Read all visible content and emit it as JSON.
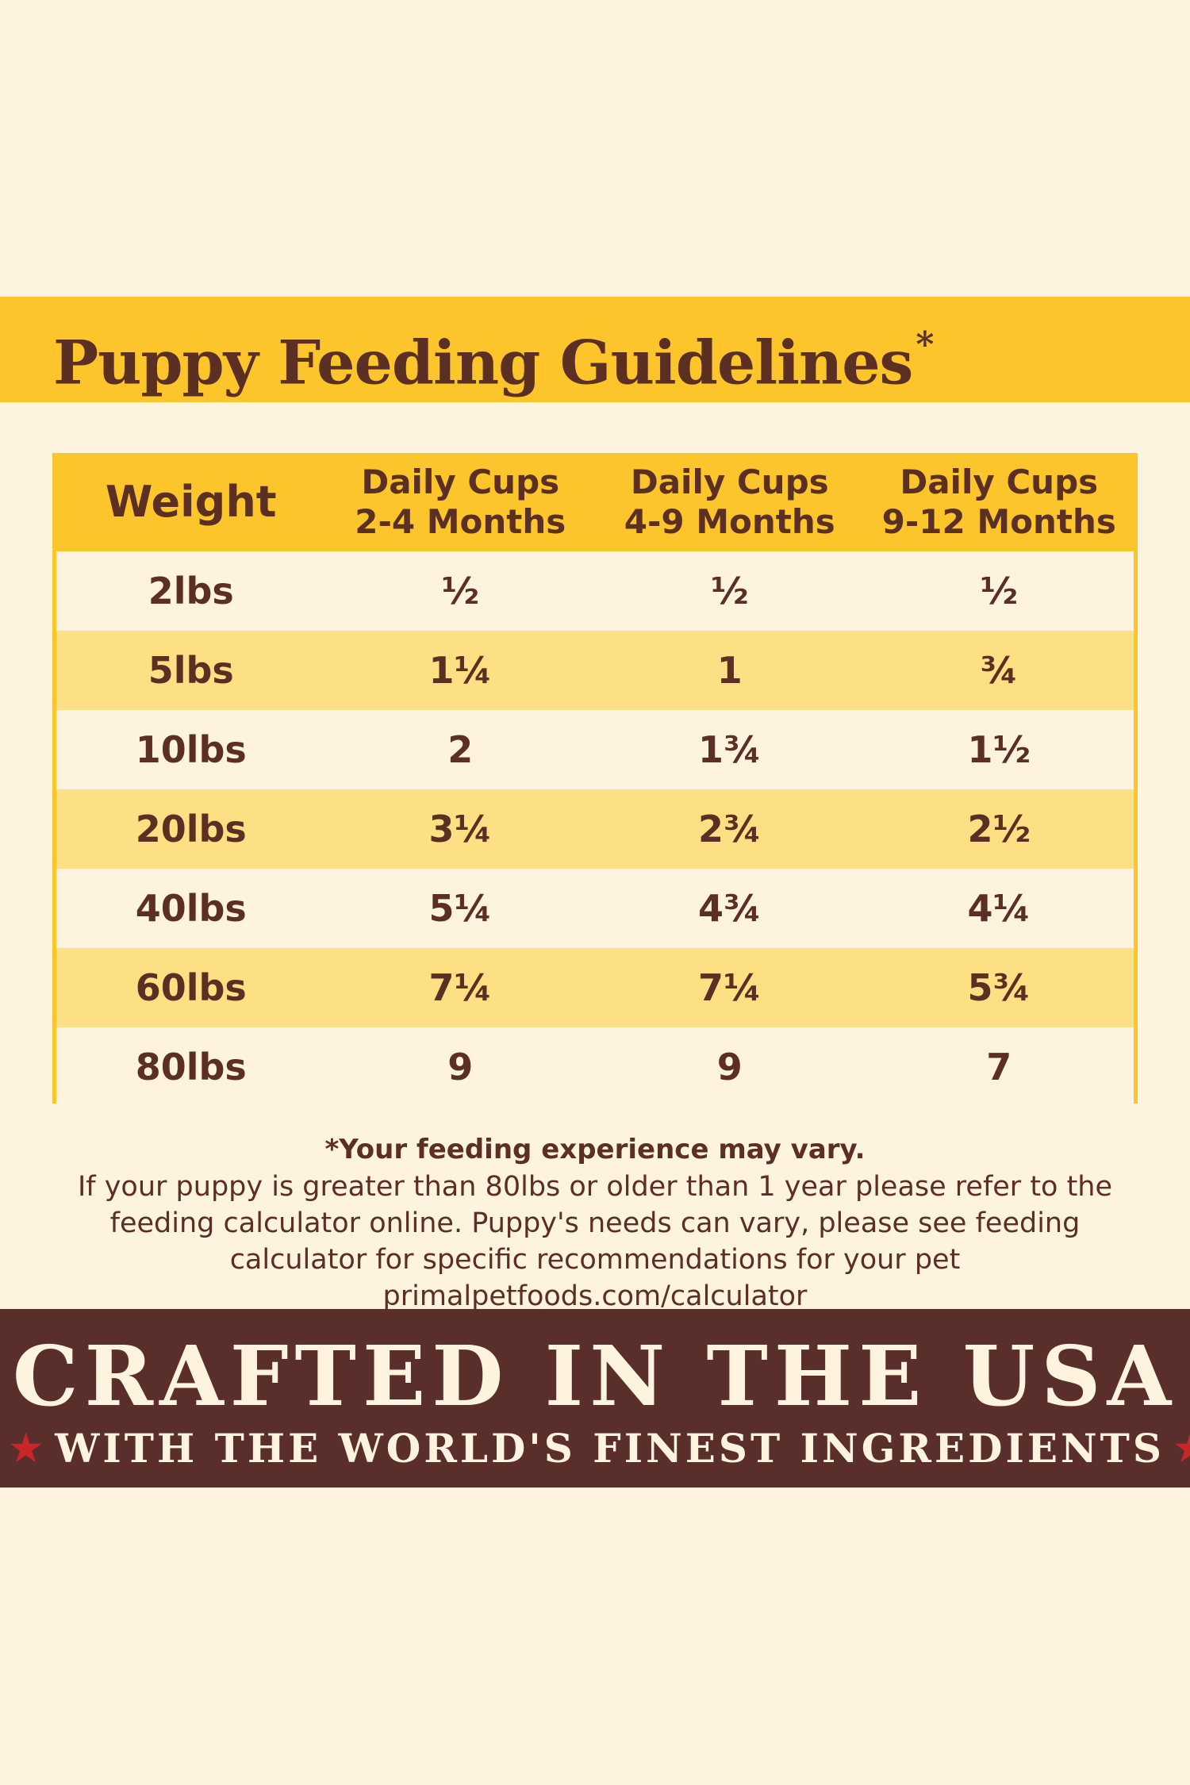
{
  "title": "Puppy Feeding Guidelines",
  "title_mark": "*",
  "table": {
    "headers": [
      {
        "line1": "Weight",
        "line2": ""
      },
      {
        "line1": "Daily Cups",
        "line2": "2-4 Months"
      },
      {
        "line1": "Daily Cups",
        "line2": "4-9 Months"
      },
      {
        "line1": "Daily Cups",
        "line2": "9-12 Months"
      }
    ],
    "rows": [
      [
        "2lbs",
        "½",
        "½",
        "½"
      ],
      [
        "5lbs",
        "1¼",
        "1",
        "¾"
      ],
      [
        "10lbs",
        "2",
        "1¾",
        "1½"
      ],
      [
        "20lbs",
        "3¼",
        "2¾",
        "2½"
      ],
      [
        "40lbs",
        "5¼",
        "4¾",
        "4¼"
      ],
      [
        "60lbs",
        "7¼",
        "7¼",
        "5¾"
      ],
      [
        "80lbs",
        "9",
        "9",
        "7"
      ]
    ]
  },
  "notes": {
    "lead": "*Your feeding experience may vary.",
    "body": "If your puppy is greater than 80lbs or older than 1 year please refer to the feeding calculator online. Puppy's needs can vary, please see feeding calculator for specific recommendations for your pet primalpetfoods.com/calculator"
  },
  "banner": {
    "main": "CRAFTED IN THE USA",
    "sub": "WITH THE WORLD'S FINEST INGREDIENTS",
    "star": "★"
  },
  "colors": {
    "background": "#fdf3df",
    "yellow": "#fdc52c",
    "light_yellow": "#fde083",
    "brown": "#5b2f22",
    "banner_brown": "#5a2e2a",
    "star_red": "#c8262a"
  }
}
